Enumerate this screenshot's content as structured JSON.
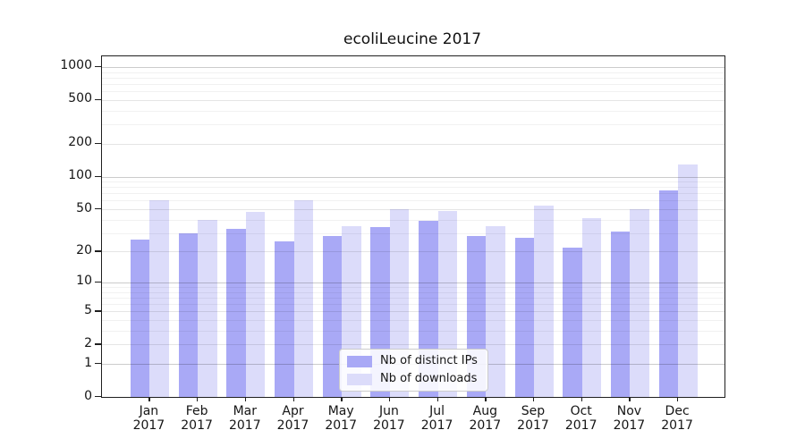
{
  "figure": {
    "title": "ecoliLeucine 2017"
  },
  "legend": {
    "items": [
      {
        "label": "Nb of distinct IPs",
        "color": "#a9a9f6"
      },
      {
        "label": "Nb of downloads",
        "color": "#dcdcfa"
      }
    ]
  },
  "chart_data": {
    "type": "bar",
    "title": "ecoliLeucine 2017",
    "categories": [
      "Jan 2017",
      "Feb 2017",
      "Mar 2017",
      "Apr 2017",
      "May 2017",
      "Jun 2017",
      "Jul 2017",
      "Aug 2017",
      "Sep 2017",
      "Oct 2017",
      "Nov 2017",
      "Dec 2017"
    ],
    "months": [
      "Jan",
      "Feb",
      "Mar",
      "Apr",
      "May",
      "Jun",
      "Jul",
      "Aug",
      "Sep",
      "Oct",
      "Nov",
      "Dec"
    ],
    "year": "2017",
    "series": [
      {
        "name": "Nb of distinct IPs",
        "color": "#a9a9f6",
        "values": [
          26,
          30,
          33,
          25,
          28,
          34,
          39,
          28,
          27,
          22,
          31,
          75
        ]
      },
      {
        "name": "Nb of downloads",
        "color": "#dcdcfa",
        "values": [
          60,
          40,
          47,
          61,
          35,
          50,
          48,
          35,
          54,
          41,
          50,
          130
        ]
      }
    ],
    "xlabel": "",
    "ylabel": "",
    "yscale": "log1p",
    "yticks": [
      0,
      1,
      2,
      5,
      10,
      20,
      50,
      100,
      200,
      500,
      1000
    ],
    "minor_yticks": [
      3,
      4,
      6,
      7,
      8,
      9,
      30,
      40,
      60,
      70,
      80,
      90,
      300,
      400,
      600,
      700,
      800,
      900
    ],
    "ylim": [
      0,
      1270
    ],
    "grid": true,
    "legend_position": "lower center inside plot"
  }
}
